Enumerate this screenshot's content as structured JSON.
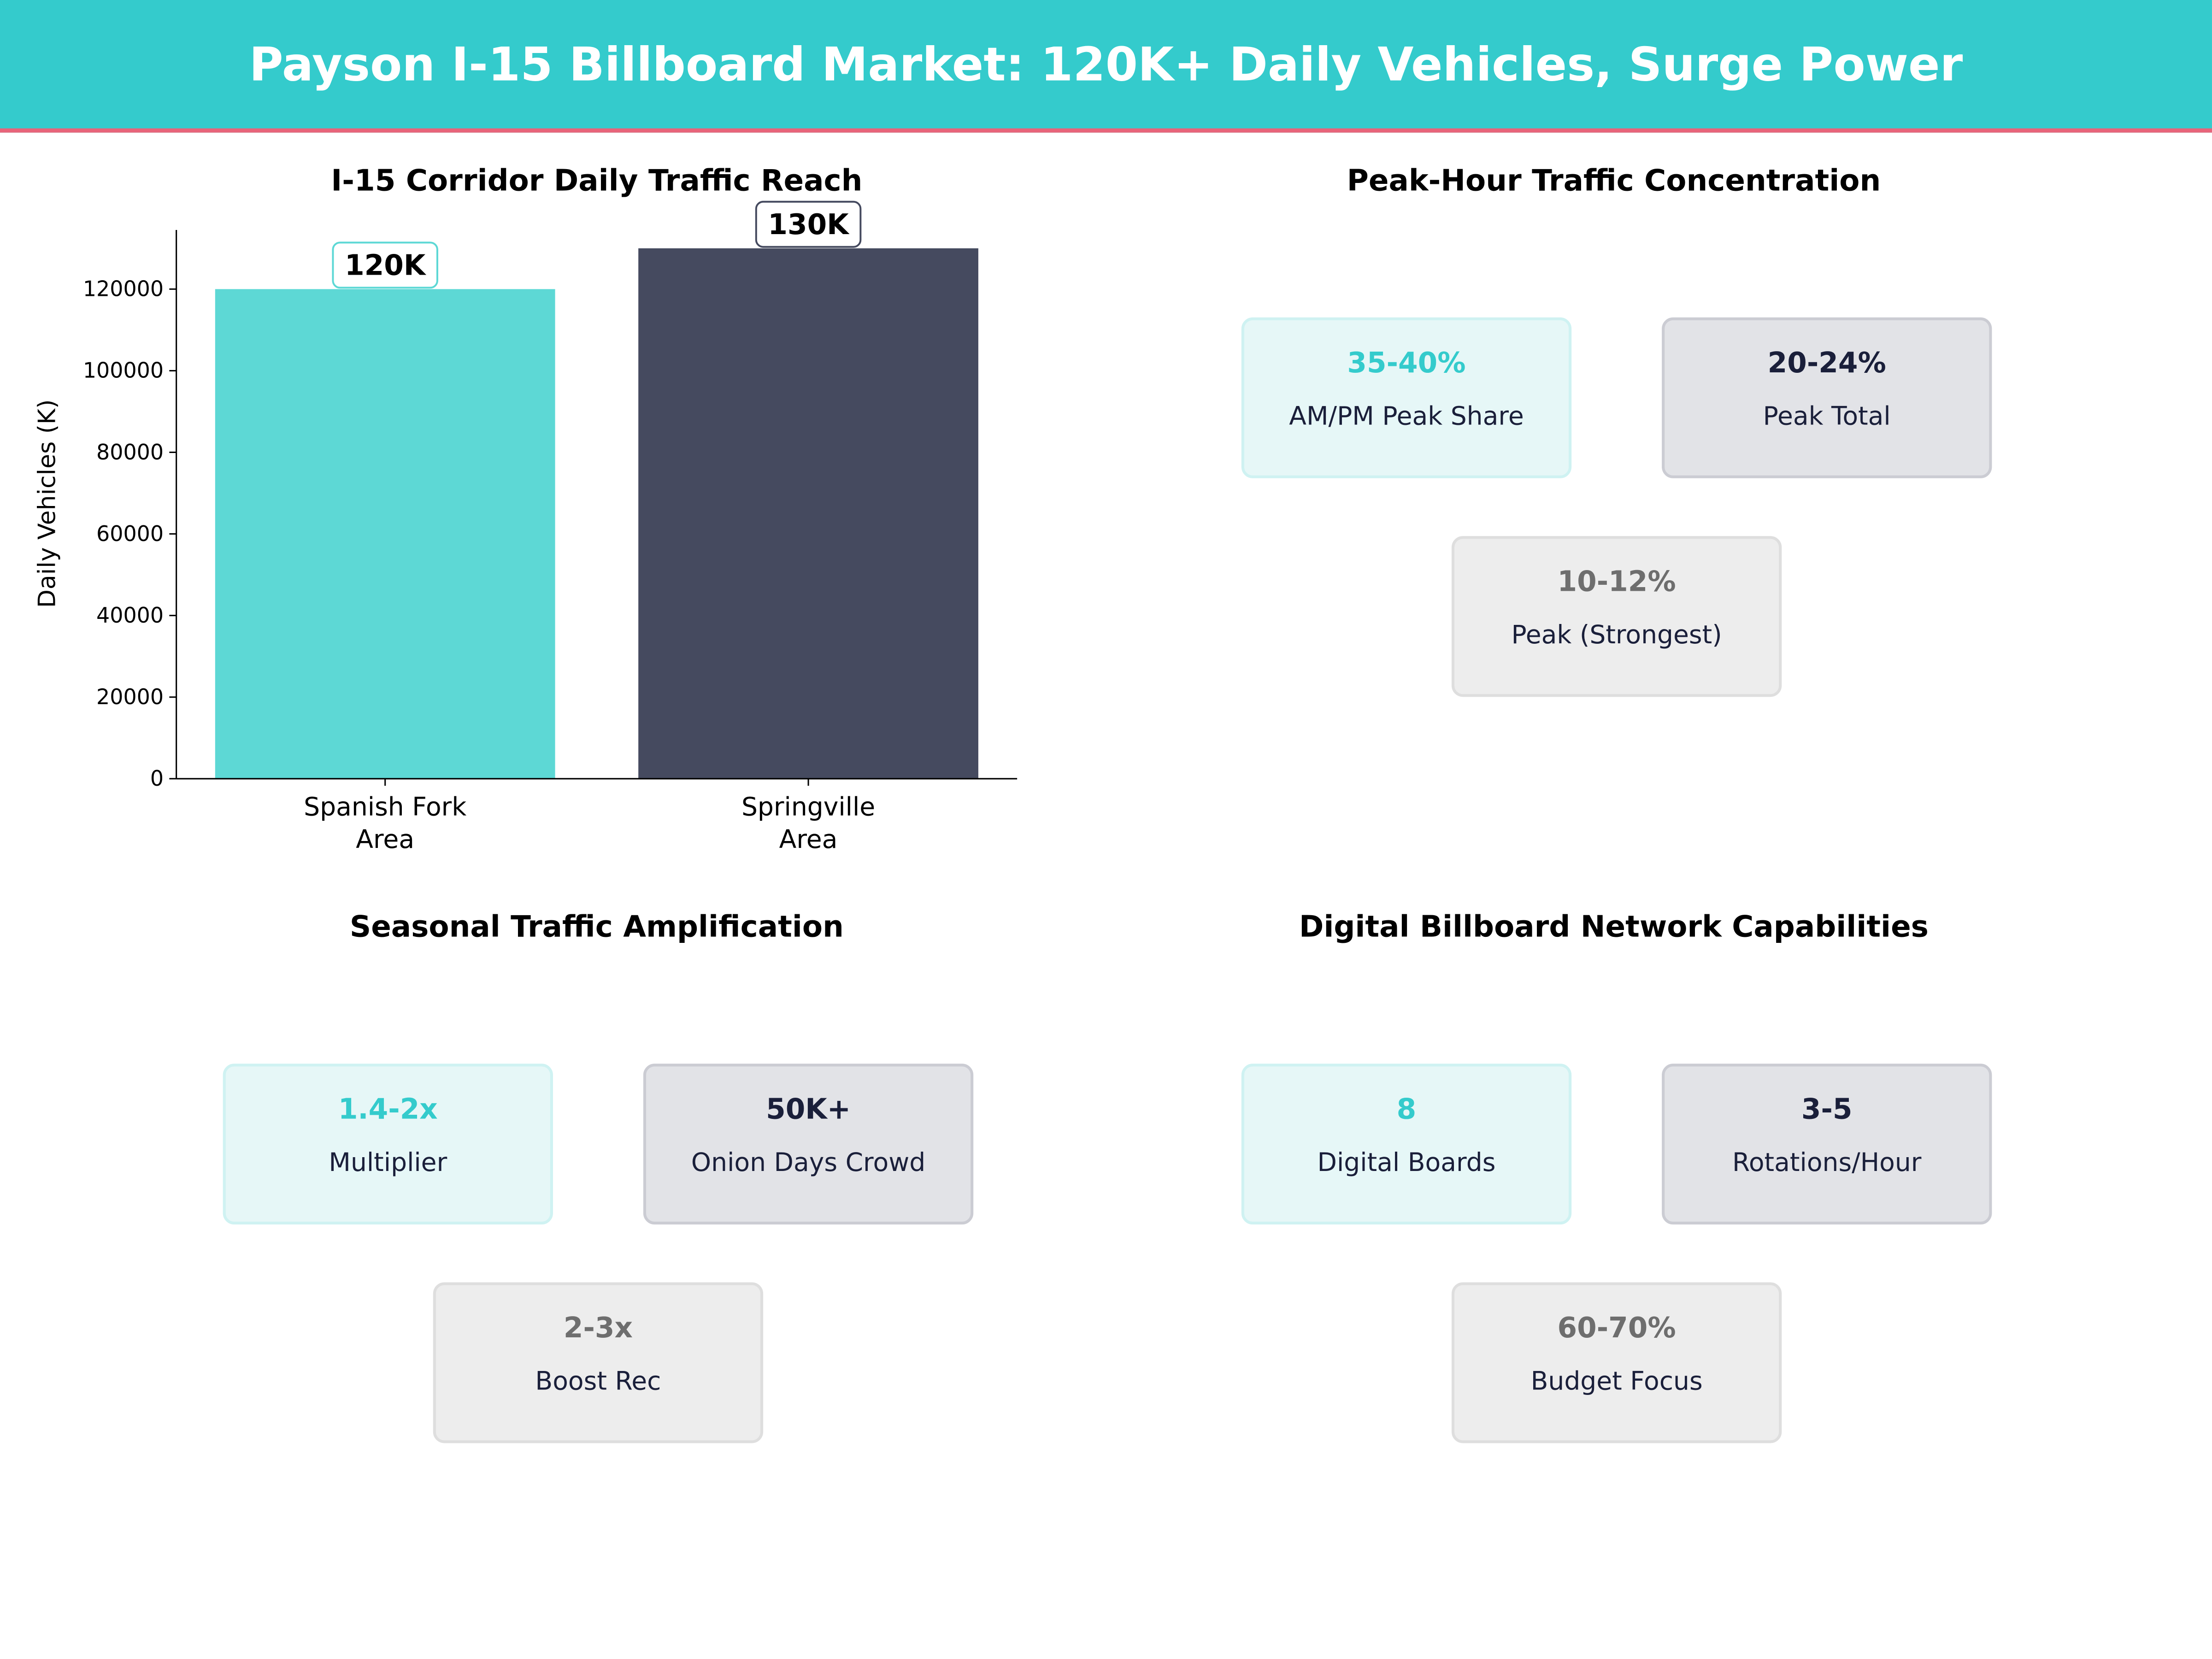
{
  "header": {
    "title": "Payson I-15 Billboard Market: 120K+ Daily Vehicles, Surge Power"
  },
  "colors": {
    "teal": "#34CBCC",
    "bar_teal": "#5DD8D5",
    "bar_dark": "#454A5F",
    "accent_line": "#E8647A",
    "navy": "#1A1F3A"
  },
  "chart_data": {
    "type": "bar",
    "title": "I-15 Corridor Daily Traffic Reach",
    "ylabel": "Daily Vehicles (K)",
    "xlabel": "",
    "categories": [
      "Spanish Fork\nArea",
      "Springville\nArea"
    ],
    "values": [
      120000,
      130000
    ],
    "data_labels": [
      "120K",
      "130K"
    ],
    "ylim": [
      0,
      134500
    ],
    "yticks": [
      0,
      20000,
      40000,
      60000,
      80000,
      100000,
      120000
    ],
    "grid": false
  },
  "panels": [
    {
      "title": "Peak-Hour Traffic Concentration",
      "cards": [
        {
          "value": "35-40%",
          "label": "AM/PM Peak Share",
          "style": "teal"
        },
        {
          "value": "20-24%",
          "label": "Peak Total",
          "style": "dark"
        },
        {
          "value": "10-12%",
          "label": "Peak (Strongest)",
          "style": "gray"
        }
      ]
    },
    {
      "title": "Seasonal Traffic Amplification",
      "cards": [
        {
          "value": "1.4-2x",
          "label": "Multiplier",
          "style": "teal"
        },
        {
          "value": "50K+",
          "label": "Onion Days Crowd",
          "style": "dark"
        },
        {
          "value": "2-3x",
          "label": "Boost Rec",
          "style": "gray"
        }
      ]
    },
    {
      "title": "Digital Billboard Network Capabilities",
      "cards": [
        {
          "value": "8",
          "label": "Digital Boards",
          "style": "teal"
        },
        {
          "value": "3-5",
          "label": "Rotations/Hour",
          "style": "dark"
        },
        {
          "value": "60-70%",
          "label": "Budget Focus",
          "style": "gray"
        }
      ]
    }
  ]
}
